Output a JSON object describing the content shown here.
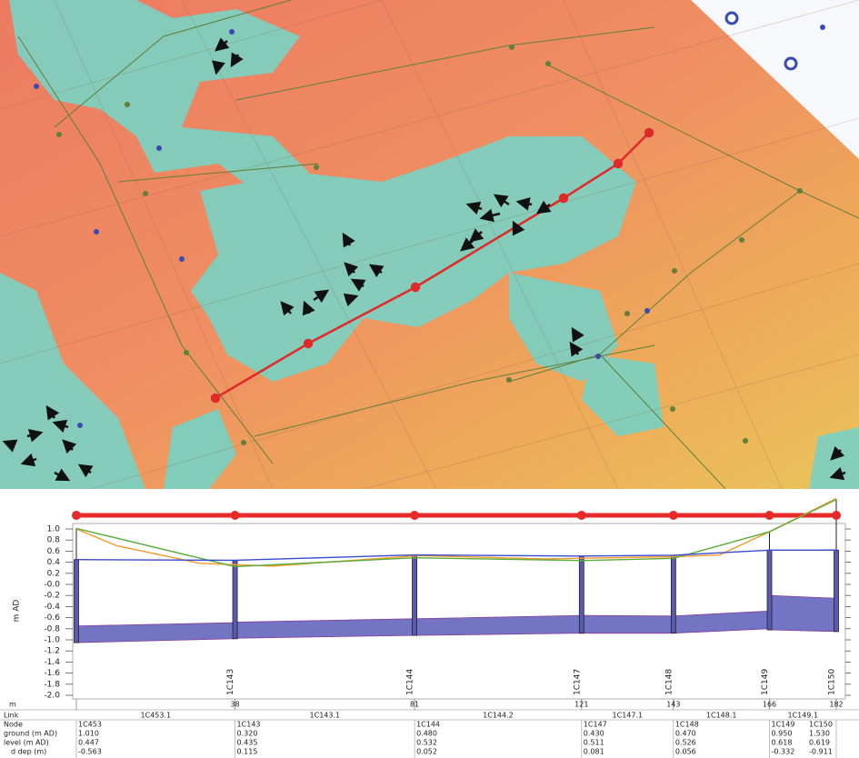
{
  "chart_data": {
    "type": "line",
    "x_label": "m",
    "y_label": "m AD",
    "xlim": [
      0,
      182
    ],
    "ylim": [
      -2.0,
      1.0
    ],
    "yticks": [
      {
        "value": -2,
        "label": "-2.0"
      },
      -1.8,
      -1.6,
      -1.4,
      -1.2,
      {
        "value": -1,
        "label": "-1.0"
      },
      -0.8,
      -0.6,
      -0.4,
      -0.2,
      {
        "value": 0,
        "label": "-0.0"
      },
      0.2,
      0.4,
      0.6,
      0.8,
      {
        "value": 1,
        "label": "1.0"
      }
    ],
    "x": [
      0,
      38,
      81,
      121,
      143,
      166,
      182
    ],
    "link_label": "Link",
    "node_label": "Node",
    "nodes": [
      "1C453",
      "1C143",
      "1C144",
      "1C147",
      "1C148",
      "1C149",
      "1C150"
    ],
    "links": [
      "1C453.1",
      "1C143.1",
      "1C144.2",
      "1C147.1",
      "1C148.1",
      "1C149.1"
    ],
    "series": [
      {
        "label": "ground (m AD)",
        "color": "#5aac3c",
        "values": [
          1.01,
          0.32,
          0.48,
          0.43,
          0.47,
          0.95,
          1.53
        ],
        "value_labels": [
          "1.010",
          "0.320",
          "0.480",
          "0.430",
          "0.470",
          "0.950",
          "1.530"
        ]
      },
      {
        "label": "level (m AD)",
        "color": "#3a4ad0",
        "values": [
          0.447,
          0.435,
          0.532,
          0.511,
          0.526,
          0.618,
          0.619
        ],
        "value_labels": [
          "0.447",
          "0.435",
          "0.532",
          "0.511",
          "0.526",
          "0.618",
          "0.619"
        ]
      }
    ],
    "depth": {
      "label": "d dep (m)",
      "values": [
        -0.563,
        0.115,
        0.052,
        0.081,
        0.056,
        -0.332,
        -0.911
      ]
    },
    "terrain": {
      "color": "#f39a2b",
      "x": [
        0,
        9.6,
        29.6,
        47,
        82,
        112,
        143,
        154,
        166,
        182
      ],
      "values": [
        1.0,
        0.7,
        0.38,
        0.33,
        0.52,
        0.46,
        0.5,
        0.53,
        0.95,
        1.55
      ]
    },
    "pipes": {
      "color": "#7474c4",
      "us_soffit": [
        -0.75,
        -0.68,
        -0.62,
        -0.56,
        -0.57,
        -0.2
      ],
      "ds_soffit": [
        -0.69,
        -0.62,
        -0.56,
        -0.57,
        -0.48,
        -0.25
      ],
      "us_invert": [
        -1.05,
        -0.97,
        -0.92,
        -0.88,
        -0.88,
        -0.82
      ],
      "ds_invert": [
        -0.98,
        -0.92,
        -0.88,
        -0.88,
        -0.8,
        -0.85
      ]
    }
  }
}
